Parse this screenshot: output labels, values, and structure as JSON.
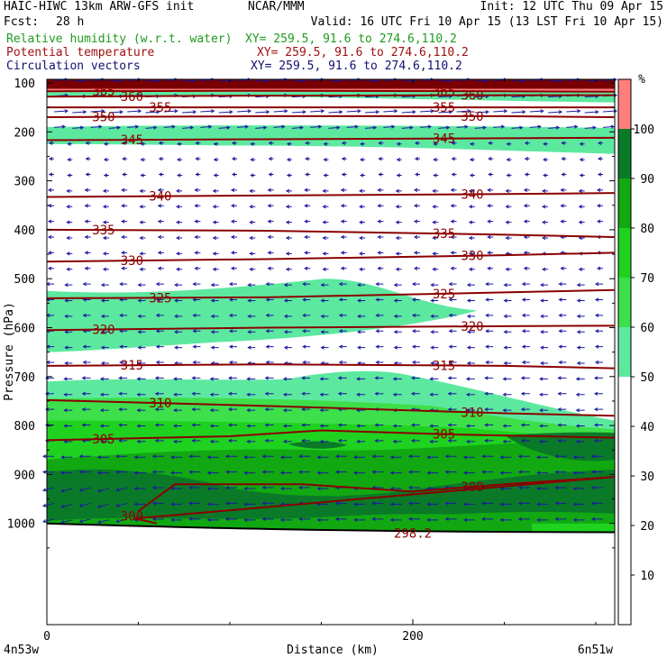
{
  "header": {
    "model": "HAIC-HIWC 13km ARW-GFS init",
    "org": "NCAR/MMM",
    "init": "Init: 12 UTC Thu 09 Apr 15",
    "fcst_label": "Fcst:",
    "fcst_value": "28 h",
    "valid": "Valid: 16 UTC Fri 10 Apr 15 (13 LST Fri 10 Apr 15)",
    "fields": [
      {
        "label": "Relative humidity (w.r.t. water)",
        "xy": "XY= 259.5, 91.6 to 274.6,110.2",
        "color": "#1e9b1e"
      },
      {
        "label": "Potential temperature",
        "xy": "XY= 259.5, 91.6 to 274.6,110.2",
        "color": "#a01010"
      },
      {
        "label": "Circulation vectors",
        "xy": "XY= 259.5, 91.6 to 274.6,110.2",
        "color": "#101070"
      }
    ]
  },
  "chart_data": {
    "type": "cross-section",
    "xlabel": "Distance (km)",
    "ylabel": "Pressure (hPa)",
    "x_ticks": [
      0,
      200
    ],
    "x_range_km": [
      0,
      310
    ],
    "left_endpoint": "4n53w",
    "right_endpoint": "6n51w",
    "y_ticks": [
      100,
      200,
      300,
      400,
      500,
      600,
      700,
      800,
      900,
      1000
    ],
    "y_range_hPa": [
      50,
      1050
    ],
    "colorbar": {
      "unit": "%",
      "levels": [
        10,
        20,
        30,
        40,
        50,
        60,
        70,
        80,
        90,
        100
      ],
      "bands": [
        {
          "from": 50,
          "to": 60,
          "color": "#5de8a0"
        },
        {
          "from": 60,
          "to": 70,
          "color": "#3de04a"
        },
        {
          "from": 70,
          "to": 80,
          "color": "#1fd21f"
        },
        {
          "from": 80,
          "to": 90,
          "color": "#12a812"
        },
        {
          "from": 90,
          "to": 100,
          "color": "#0a7a28"
        },
        {
          "from": 100,
          "to": 110,
          "color": "#ff7f7f"
        },
        {
          "from": 110,
          "to": 120,
          "color": "#7a0000"
        }
      ]
    },
    "theta_contours": [
      {
        "value": 365,
        "label": "365",
        "pts": [
          [
            0,
            117
          ],
          [
            120,
            116
          ],
          [
            250,
            117
          ],
          [
            310,
            118
          ]
        ]
      },
      {
        "value": 360,
        "label": "360",
        "pts": [
          [
            0,
            128
          ],
          [
            120,
            126
          ],
          [
            250,
            125
          ],
          [
            310,
            125
          ]
        ]
      },
      {
        "value": 355,
        "label": "355",
        "pts": [
          [
            0,
            150
          ],
          [
            120,
            150
          ],
          [
            250,
            150
          ],
          [
            310,
            150
          ]
        ]
      },
      {
        "value": 350,
        "label": "350",
        "pts": [
          [
            0,
            170
          ],
          [
            120,
            168
          ],
          [
            250,
            168
          ],
          [
            310,
            170
          ]
        ]
      },
      {
        "value": 345,
        "label": "345",
        "pts": [
          [
            0,
            217
          ],
          [
            120,
            215
          ],
          [
            250,
            213
          ],
          [
            310,
            212
          ]
        ]
      },
      {
        "value": 340,
        "label": "340",
        "pts": [
          [
            0,
            333
          ],
          [
            120,
            330
          ],
          [
            250,
            327
          ],
          [
            310,
            325
          ]
        ]
      },
      {
        "value": 335,
        "label": "335",
        "pts": [
          [
            0,
            400
          ],
          [
            120,
            402
          ],
          [
            250,
            410
          ],
          [
            310,
            415
          ]
        ]
      },
      {
        "value": 330,
        "label": "330",
        "pts": [
          [
            0,
            465
          ],
          [
            120,
            460
          ],
          [
            250,
            452
          ],
          [
            310,
            447
          ]
        ]
      },
      {
        "value": 325,
        "label": "325",
        "pts": [
          [
            0,
            540
          ],
          [
            120,
            538
          ],
          [
            250,
            528
          ],
          [
            310,
            523
          ]
        ]
      },
      {
        "value": 320,
        "label": "320",
        "pts": [
          [
            0,
            605
          ],
          [
            120,
            600
          ],
          [
            250,
            597
          ],
          [
            310,
            596
          ]
        ]
      },
      {
        "value": 315,
        "label": "315",
        "pts": [
          [
            0,
            678
          ],
          [
            120,
            675
          ],
          [
            250,
            678
          ],
          [
            310,
            683
          ]
        ]
      },
      {
        "value": 310,
        "label": "310",
        "pts": [
          [
            0,
            748
          ],
          [
            120,
            760
          ],
          [
            250,
            775
          ],
          [
            310,
            780
          ]
        ]
      },
      {
        "value": 305,
        "label": "305",
        "pts": [
          [
            0,
            830
          ],
          [
            100,
            822
          ],
          [
            150,
            810
          ],
          [
            220,
            818
          ],
          [
            310,
            825
          ]
        ]
      },
      {
        "value": 300,
        "label": "300",
        "pts": [
          [
            50,
            975
          ],
          [
            70,
            920
          ],
          [
            140,
            920
          ],
          [
            200,
            935
          ],
          [
            250,
            920
          ],
          [
            310,
            905
          ]
        ]
      },
      {
        "value": 298.2,
        "label": "298.2",
        "pts": [
          [
            200,
            1000
          ]
        ]
      }
    ],
    "wind_direction": "easterly below 200 hPa, westerly above 200 hPa"
  }
}
